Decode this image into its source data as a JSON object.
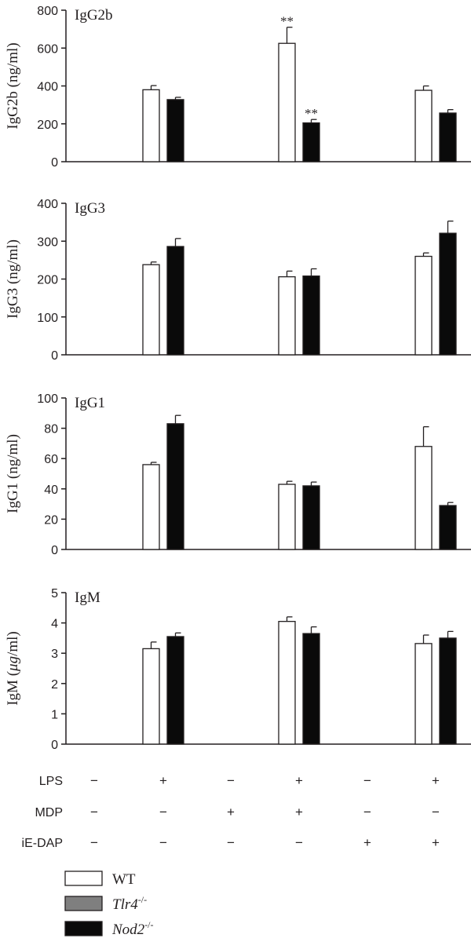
{
  "chart_data": [
    {
      "type": "bar",
      "title": "IgG2b",
      "ylabel_text": "IgG2b (ng/ml)",
      "ylim": [
        0,
        800
      ],
      "yticks": [
        "0",
        "200",
        "400",
        "600",
        "800"
      ],
      "ytick_values": [
        0,
        200,
        400,
        600,
        800
      ],
      "series": [
        {
          "name": "WT",
          "color": "#ffffff",
          "values": [
            null,
            380,
            null,
            625,
            null,
            377
          ],
          "errors": [
            null,
            22,
            null,
            85,
            null,
            23
          ],
          "significance": [
            null,
            "",
            null,
            "**",
            null,
            ""
          ]
        },
        {
          "name": "Nod2",
          "name_superscript": "-/-",
          "color": "#0a0a0a",
          "values": [
            null,
            328,
            null,
            205,
            null,
            257
          ],
          "errors": [
            null,
            12,
            null,
            18,
            null,
            18
          ],
          "significance": [
            null,
            "",
            null,
            "**",
            null,
            ""
          ]
        }
      ]
    },
    {
      "type": "bar",
      "title": "IgG3",
      "ylabel_text": "IgG3 (ng/ml)",
      "ylim": [
        0,
        400
      ],
      "yticks": [
        "0",
        "100",
        "200",
        "300",
        "400"
      ],
      "ytick_values": [
        0,
        100,
        200,
        300,
        400
      ],
      "series": [
        {
          "name": "WT",
          "color": "#ffffff",
          "values": [
            null,
            238,
            null,
            206,
            null,
            260
          ],
          "errors": [
            null,
            7,
            null,
            15,
            null,
            9
          ],
          "significance": [
            null,
            "",
            null,
            "",
            null,
            ""
          ]
        },
        {
          "name": "Nod2",
          "name_superscript": "-/-",
          "color": "#0a0a0a",
          "values": [
            null,
            286,
            null,
            208,
            null,
            321
          ],
          "errors": [
            null,
            21,
            null,
            19,
            null,
            32
          ],
          "significance": [
            null,
            "",
            null,
            "",
            null,
            ""
          ]
        }
      ]
    },
    {
      "type": "bar",
      "title": "IgG1",
      "ylabel_text": "IgG1 (ng/ml)",
      "ylim": [
        0,
        100
      ],
      "yticks": [
        "0",
        "20",
        "40",
        "60",
        "80",
        "100"
      ],
      "ytick_values": [
        0,
        20,
        40,
        60,
        80,
        100
      ],
      "series": [
        {
          "name": "WT",
          "color": "#ffffff",
          "values": [
            null,
            56,
            null,
            43,
            null,
            68
          ],
          "errors": [
            null,
            1.5,
            null,
            2,
            null,
            13
          ],
          "significance": [
            null,
            "",
            null,
            "",
            null,
            ""
          ]
        },
        {
          "name": "Nod2",
          "name_superscript": "-/-",
          "color": "#0a0a0a",
          "values": [
            null,
            83,
            null,
            42,
            null,
            29
          ],
          "errors": [
            null,
            5.5,
            null,
            2.5,
            null,
            2
          ],
          "significance": [
            null,
            "",
            null,
            "",
            null,
            ""
          ]
        }
      ]
    },
    {
      "type": "bar",
      "title": "IgM",
      "ylabel_prefix": "IgM (",
      "ylabel_unit": "μg",
      "ylabel_suffix": "/ml)",
      "ylim": [
        0,
        5
      ],
      "yticks": [
        "0",
        "1",
        "2",
        "3",
        "4",
        "5"
      ],
      "ytick_values": [
        0,
        1,
        2,
        3,
        4,
        5
      ],
      "series": [
        {
          "name": "WT",
          "color": "#ffffff",
          "values": [
            null,
            3.15,
            null,
            4.05,
            null,
            3.32
          ],
          "errors": [
            null,
            0.22,
            null,
            0.15,
            null,
            0.28
          ],
          "significance": [
            null,
            "",
            null,
            "",
            null,
            ""
          ]
        },
        {
          "name": "Nod2",
          "name_superscript": "-/-",
          "color": "#0a0a0a",
          "values": [
            null,
            3.55,
            null,
            3.65,
            null,
            3.5
          ],
          "errors": [
            null,
            0.12,
            null,
            0.22,
            null,
            0.22
          ],
          "significance": [
            null,
            "",
            null,
            "",
            null,
            ""
          ]
        }
      ]
    }
  ],
  "conditions": {
    "rows": [
      {
        "label": "LPS",
        "signs": [
          "−",
          "+",
          "−",
          "+",
          "−",
          "+"
        ]
      },
      {
        "label": "MDP",
        "signs": [
          "−",
          "−",
          "+",
          "+",
          "−",
          "−"
        ]
      },
      {
        "label": "iE-DAP",
        "signs": [
          "−",
          "−",
          "−",
          "−",
          "+",
          "+"
        ]
      }
    ]
  },
  "legend": {
    "position": "bottom-left",
    "items": [
      {
        "name": "WT",
        "superscript": "",
        "color": "#ffffff",
        "italic": false
      },
      {
        "name": "Tlr4",
        "superscript": "-/-",
        "color": "#7f7f7f",
        "italic": true
      },
      {
        "name": "Nod2",
        "superscript": "-/-",
        "color": "#0a0a0a",
        "italic": true
      }
    ]
  }
}
